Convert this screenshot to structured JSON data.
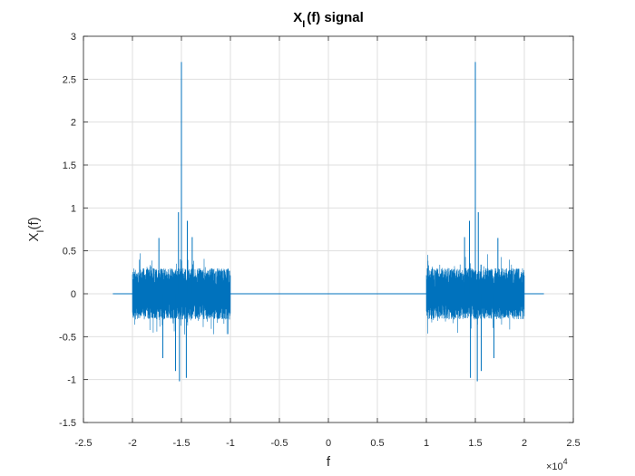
{
  "chart_data": {
    "type": "line",
    "title_main": "X",
    "title_sub": "I",
    "title_rest": "(f) signal",
    "xlabel": "f",
    "ylabel_main": "X",
    "ylabel_sub": "I",
    "ylabel_rest": "(f)",
    "x_exponent_base": "×10",
    "x_exponent_power": "4",
    "xlim": [
      -2.5,
      2.5
    ],
    "ylim": [
      -1.5,
      3
    ],
    "grid": true,
    "line_color": "#0072BD",
    "xticks": [
      -2.5,
      -2,
      -1.5,
      -1,
      -0.5,
      0,
      0.5,
      1,
      1.5,
      2,
      2.5
    ],
    "xtick_labels": [
      "-2.5",
      "-2",
      "-1.5",
      "-1",
      "-0.5",
      "0",
      "0.5",
      "1",
      "1.5",
      "2",
      "2.5"
    ],
    "yticks": [
      -1.5,
      -1,
      -0.5,
      0,
      0.5,
      1,
      1.5,
      2,
      2.5,
      3
    ],
    "ytick_labels": [
      "-1.5",
      "-1",
      "-0.5",
      "0",
      "0.5",
      "1",
      "1.5",
      "2",
      "2.5",
      "3"
    ],
    "series": [
      {
        "x_range": [
          -2.2,
          2.2
        ],
        "flat_regions": [
          [
            -2.2,
            -2.0
          ],
          [
            -1.0,
            1.0
          ],
          [
            2.0,
            2.2
          ]
        ],
        "noise_bands": [
          [
            -2.0,
            -1.0
          ],
          [
            1.0,
            2.0
          ]
        ],
        "noise_band_amplitude": 0.3,
        "peaks": [
          {
            "x": -1.5,
            "y": 2.7
          },
          {
            "x": 1.5,
            "y": 2.7
          },
          {
            "x": -1.53,
            "y": 0.95
          },
          {
            "x": -1.44,
            "y": 0.85
          },
          {
            "x": 1.53,
            "y": 0.95
          },
          {
            "x": 1.44,
            "y": 0.85
          },
          {
            "x": -1.73,
            "y": 0.65
          },
          {
            "x": -1.39,
            "y": 0.66
          },
          {
            "x": 1.39,
            "y": 0.66
          },
          {
            "x": 1.73,
            "y": 0.65
          },
          {
            "x": -1.52,
            "y": -1.02
          },
          {
            "x": -1.45,
            "y": -0.98
          },
          {
            "x": 1.52,
            "y": -1.02
          },
          {
            "x": 1.45,
            "y": -0.98
          },
          {
            "x": -1.56,
            "y": -0.9
          },
          {
            "x": 1.56,
            "y": -0.9
          },
          {
            "x": -1.69,
            "y": -0.75
          },
          {
            "x": 1.69,
            "y": -0.75
          }
        ]
      }
    ]
  }
}
